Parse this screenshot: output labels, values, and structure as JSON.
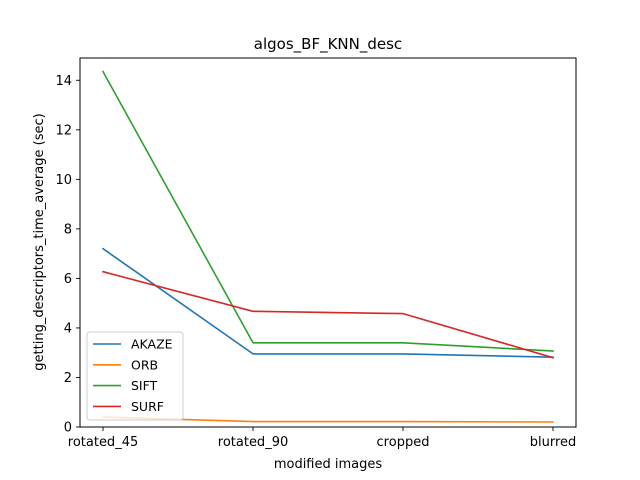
{
  "chart_data": {
    "type": "line",
    "title": "algos_BF_KNN_desc",
    "xlabel": "modified images",
    "ylabel": "getting_descriptors_time_average (sec)",
    "categories": [
      "rotated_45",
      "rotated_90",
      "cropped",
      "blurred"
    ],
    "ylim": [
      0,
      14.9
    ],
    "yticks": [
      "0",
      "2",
      "4",
      "6",
      "8",
      "10",
      "12",
      "14"
    ],
    "grid": false,
    "legend_position": "lower-left",
    "series": [
      {
        "name": "AKAZE",
        "color": "#1f77b4",
        "values": [
          7.2,
          2.95,
          2.95,
          2.82
        ]
      },
      {
        "name": "ORB",
        "color": "#ff7f0e",
        "values": [
          0.4,
          0.22,
          0.22,
          0.2
        ]
      },
      {
        "name": "SIFT",
        "color": "#2ca02c",
        "values": [
          14.35,
          3.4,
          3.4,
          3.07
        ]
      },
      {
        "name": "SURF",
        "color": "#d62728",
        "values": [
          6.27,
          4.67,
          4.58,
          2.8
        ]
      }
    ]
  }
}
